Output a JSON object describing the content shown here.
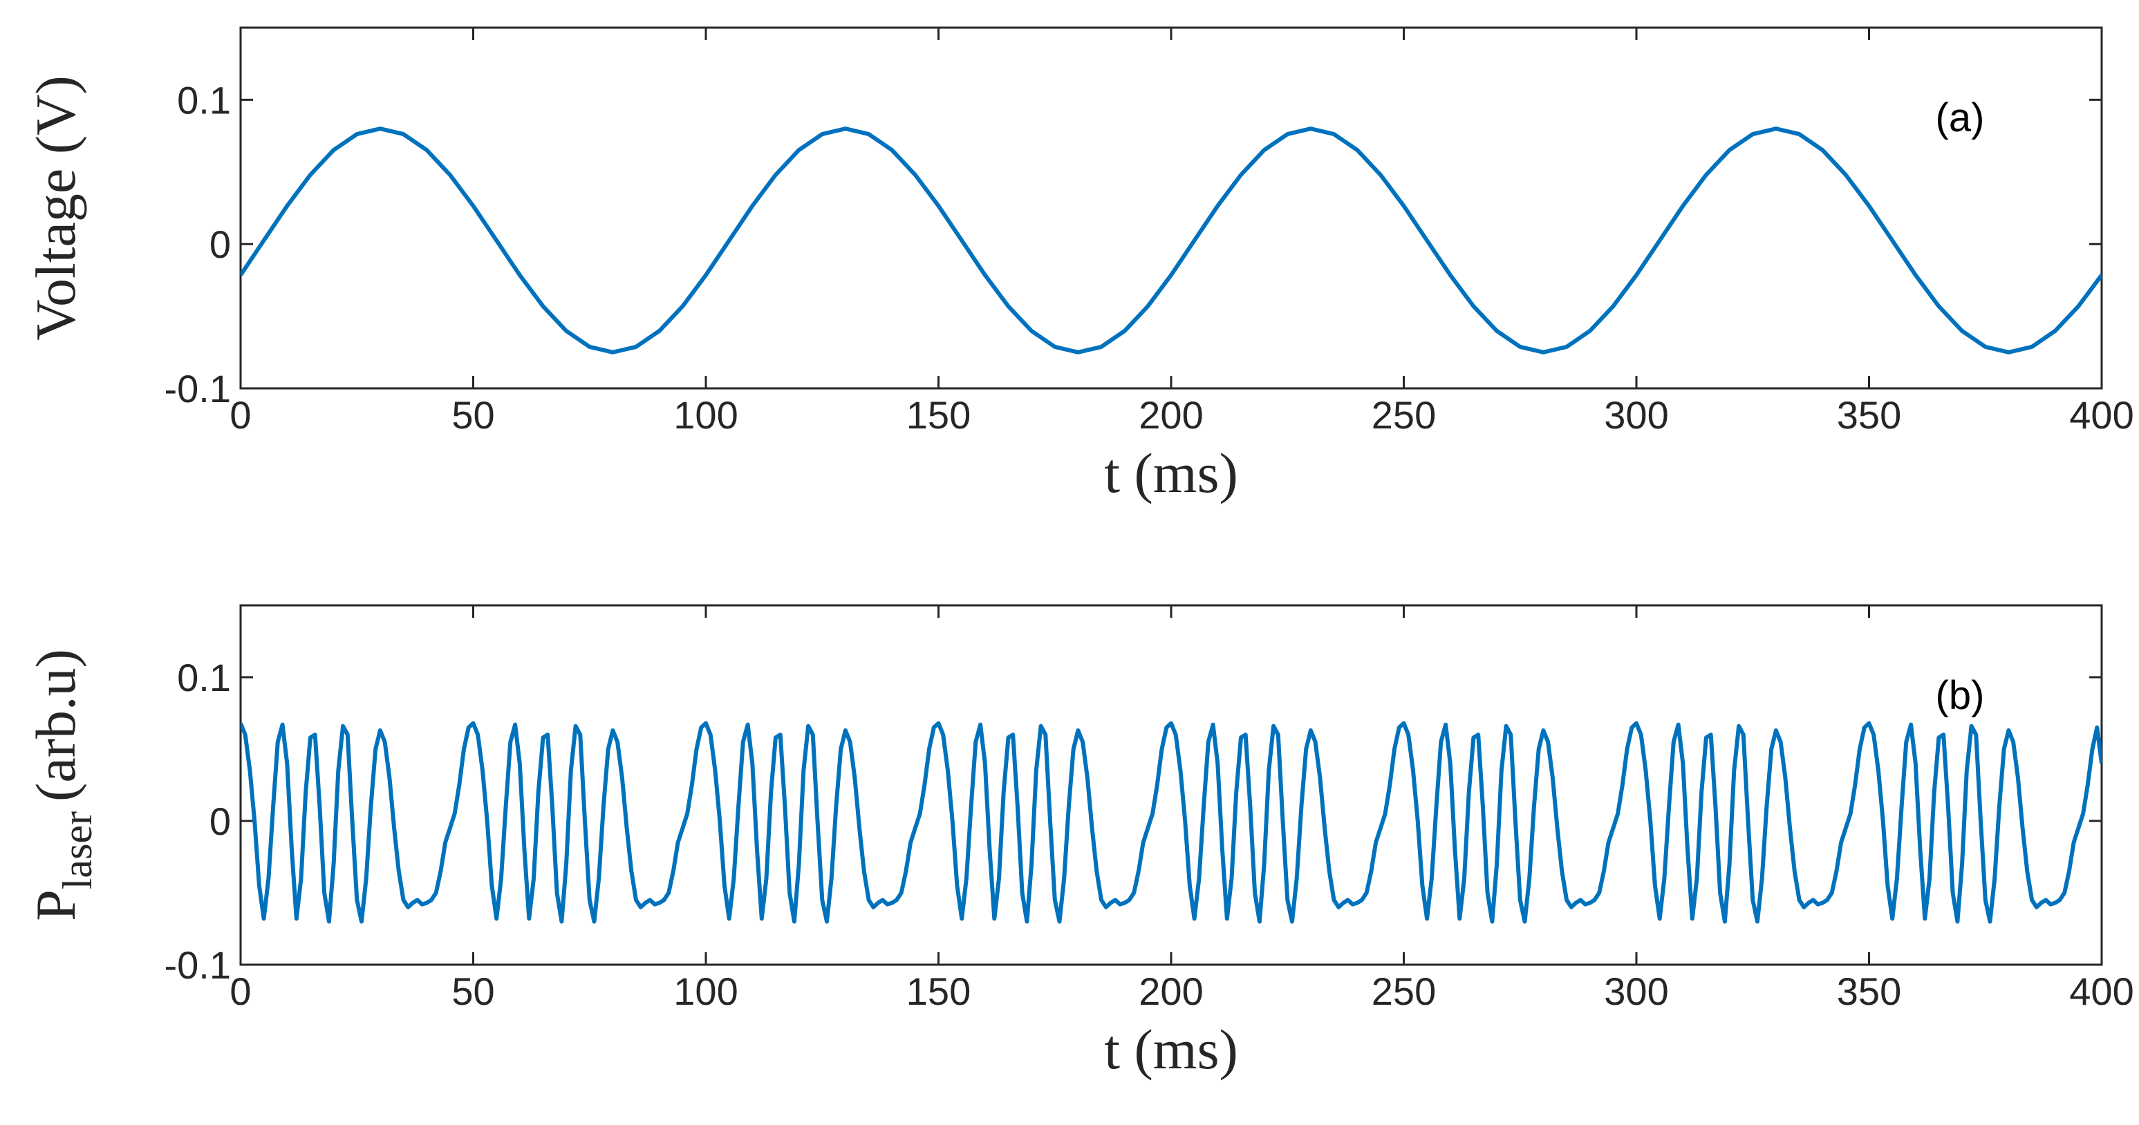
{
  "chart_data": [
    {
      "type": "line",
      "annotation": "(a)",
      "xlabel": "t (ms)",
      "ylabel": "Voltage  (V)",
      "color": "#0072bd",
      "xlim": [
        0,
        400
      ],
      "xticks": [
        0,
        50,
        100,
        150,
        200,
        250,
        300,
        350,
        400
      ],
      "ylim": [
        -0.1,
        0.15
      ],
      "yticks": [
        -0.1,
        0,
        0.1
      ],
      "x": [
        0,
        5,
        10,
        15,
        20,
        25,
        30,
        35,
        40,
        45,
        50,
        55,
        60,
        65,
        70,
        75,
        80,
        85,
        90,
        95,
        100,
        105,
        110,
        115,
        120,
        125,
        130,
        135,
        140,
        145,
        150,
        155,
        160,
        165,
        170,
        175,
        180,
        185,
        190,
        195,
        200,
        205,
        210,
        215,
        220,
        225,
        230,
        235,
        240,
        245,
        250,
        255,
        260,
        265,
        270,
        275,
        280,
        285,
        290,
        295,
        300,
        305,
        310,
        315,
        320,
        325,
        330,
        335,
        340,
        345,
        350,
        355,
        360,
        365,
        370,
        375,
        380,
        385,
        390,
        395,
        400
      ],
      "values": [
        -0.0215,
        0.0025,
        0.0265,
        0.048,
        0.0652,
        0.0762,
        0.08,
        0.0762,
        0.0652,
        0.048,
        0.0265,
        0.0025,
        -0.0215,
        -0.0431,
        -0.0602,
        -0.0712,
        -0.075,
        -0.0712,
        -0.0602,
        -0.0431,
        -0.0215,
        0.0025,
        0.0265,
        0.048,
        0.0652,
        0.0762,
        0.08,
        0.0762,
        0.0652,
        0.048,
        0.0265,
        0.0025,
        -0.0215,
        -0.0431,
        -0.0602,
        -0.0712,
        -0.075,
        -0.0712,
        -0.0602,
        -0.0431,
        -0.0215,
        0.0025,
        0.0265,
        0.048,
        0.0652,
        0.0762,
        0.08,
        0.0762,
        0.0652,
        0.048,
        0.0265,
        0.0025,
        -0.0215,
        -0.0431,
        -0.0602,
        -0.0712,
        -0.075,
        -0.0712,
        -0.0602,
        -0.0431,
        -0.0215,
        0.0025,
        0.0265,
        0.048,
        0.0652,
        0.0762,
        0.08,
        0.0762,
        0.0652,
        0.048,
        0.0265,
        0.0025,
        -0.0215,
        -0.0431,
        -0.0602,
        -0.0712,
        -0.075,
        -0.0712,
        -0.0602,
        -0.0431,
        -0.0215
      ]
    },
    {
      "type": "line",
      "annotation": "(b)",
      "xlabel": "t (ms)",
      "ylabel": {
        "main": "P",
        "sub": "laser",
        "unit": "(arb.u)"
      },
      "color": "#0072bd",
      "xlim": [
        0,
        400
      ],
      "xticks": [
        0,
        50,
        100,
        150,
        200,
        250,
        300,
        350,
        400
      ],
      "ylim": [
        -0.1,
        0.15
      ],
      "yticks": [
        -0.1,
        0,
        0.1
      ],
      "x": [
        0,
        1,
        2,
        3,
        4,
        5,
        6,
        7,
        8,
        9,
        10,
        11,
        12,
        13,
        14,
        15,
        16,
        17,
        18,
        19,
        20,
        21,
        22,
        23,
        24,
        25,
        26,
        27,
        28,
        29,
        30,
        31,
        32,
        33,
        34,
        35,
        36,
        37,
        38,
        39,
        40,
        41,
        42,
        43,
        44,
        45,
        46,
        47,
        48,
        49,
        50,
        51,
        52,
        53,
        54,
        55,
        56,
        57,
        58,
        59,
        60,
        61,
        62,
        63,
        64,
        65,
        66,
        67,
        68,
        69,
        70,
        71,
        72,
        73,
        74,
        75,
        76,
        77,
        78,
        79,
        80,
        81,
        82,
        83,
        84,
        85,
        86,
        87,
        88,
        89,
        90,
        91,
        92,
        93,
        94,
        95,
        96,
        97,
        98,
        99,
        100,
        101,
        102,
        103,
        104,
        105,
        106,
        107,
        108,
        109,
        110,
        111,
        112,
        113,
        114,
        115,
        116,
        117,
        118,
        119,
        120,
        121,
        122,
        123,
        124,
        125,
        126,
        127,
        128,
        129,
        130,
        131,
        132,
        133,
        134,
        135,
        136,
        137,
        138,
        139,
        140,
        141,
        142,
        143,
        144,
        145,
        146,
        147,
        148,
        149,
        150,
        151,
        152,
        153,
        154,
        155,
        156,
        157,
        158,
        159,
        160,
        161,
        162,
        163,
        164,
        165,
        166,
        167,
        168,
        169,
        170,
        171,
        172,
        173,
        174,
        175,
        176,
        177,
        178,
        179,
        180,
        181,
        182,
        183,
        184,
        185,
        186,
        187,
        188,
        189,
        190,
        191,
        192,
        193,
        194,
        195,
        196,
        197,
        198,
        199,
        200,
        201,
        202,
        203,
        204,
        205,
        206,
        207,
        208,
        209,
        210,
        211,
        212,
        213,
        214,
        215,
        216,
        217,
        218,
        219,
        220,
        221,
        222,
        223,
        224,
        225,
        226,
        227,
        228,
        229,
        230,
        231,
        232,
        233,
        234,
        235,
        236,
        237,
        238,
        239,
        240,
        241,
        242,
        243,
        244,
        245,
        246,
        247,
        248,
        249,
        250,
        251,
        252,
        253,
        254,
        255,
        256,
        257,
        258,
        259,
        260,
        261,
        262,
        263,
        264,
        265,
        266,
        267,
        268,
        269,
        270,
        271,
        272,
        273,
        274,
        275,
        276,
        277,
        278,
        279,
        280,
        281,
        282,
        283,
        284,
        285,
        286,
        287,
        288,
        289,
        290,
        291,
        292,
        293,
        294,
        295,
        296,
        297,
        298,
        299,
        300,
        301,
        302,
        303,
        304,
        305,
        306,
        307,
        308,
        309,
        310,
        311,
        312,
        313,
        314,
        315,
        316,
        317,
        318,
        319,
        320,
        321,
        322,
        323,
        324,
        325,
        326,
        327,
        328,
        329,
        330,
        331,
        332,
        333,
        334,
        335,
        336,
        337,
        338,
        339,
        340,
        341,
        342,
        343,
        344,
        345,
        346,
        347,
        348,
        349,
        350,
        351,
        352,
        353,
        354,
        355,
        356,
        357,
        358,
        359,
        360,
        361,
        362,
        363,
        364,
        365,
        366,
        367,
        368,
        369,
        370,
        371,
        372,
        373,
        374,
        375,
        376,
        377,
        378,
        379,
        380,
        381,
        382,
        383,
        384,
        385,
        386,
        387,
        388,
        389,
        390,
        391,
        392,
        393,
        394,
        395,
        396,
        397,
        398,
        399,
        400
      ],
      "values": [
        0.068,
        0.06,
        0.035,
        0,
        -0.045,
        -0.068,
        -0.04,
        0.01,
        0.055,
        0.067,
        0.04,
        -0.02,
        -0.068,
        -0.04,
        0.02,
        0.058,
        0.06,
        0.01,
        -0.05,
        -0.07,
        -0.03,
        0.035,
        0.066,
        0.06,
        0,
        -0.055,
        -0.07,
        -0.04,
        0.01,
        0.05,
        0.063,
        0.055,
        0.03,
        -0.005,
        -0.035,
        -0.055,
        -0.06,
        -0.057,
        -0.055,
        -0.058,
        -0.057,
        -0.055,
        -0.05,
        -0.035,
        -0.015,
        -0.005,
        0.005,
        0.025,
        0.05,
        0.065,
        0.068,
        0.06,
        0.035,
        0,
        -0.045,
        -0.068,
        -0.04,
        0.01,
        0.055,
        0.067,
        0.04,
        -0.02,
        -0.068,
        -0.04,
        0.02,
        0.058,
        0.06,
        0.01,
        -0.05,
        -0.07,
        -0.03,
        0.035,
        0.066,
        0.06,
        0,
        -0.055,
        -0.07,
        -0.04,
        0.01,
        0.05,
        0.063,
        0.055,
        0.03,
        -0.005,
        -0.035,
        -0.055,
        -0.06,
        -0.057,
        -0.055,
        -0.058,
        -0.057,
        -0.055,
        -0.05,
        -0.035,
        -0.015,
        -0.005,
        0.005,
        0.025,
        0.05,
        0.065,
        0.068,
        0.06,
        0.035,
        0,
        -0.045,
        -0.068,
        -0.04,
        0.01,
        0.055,
        0.067,
        0.04,
        -0.02,
        -0.068,
        -0.04,
        0.02,
        0.058,
        0.06,
        0.01,
        -0.05,
        -0.07,
        -0.03,
        0.035,
        0.066,
        0.06,
        0,
        -0.055,
        -0.07,
        -0.04,
        0.01,
        0.05,
        0.063,
        0.055,
        0.03,
        -0.005,
        -0.035,
        -0.055,
        -0.06,
        -0.057,
        -0.055,
        -0.058,
        -0.057,
        -0.055,
        -0.05,
        -0.035,
        -0.015,
        -0.005,
        0.005,
        0.025,
        0.05,
        0.065,
        0.068,
        0.06,
        0.035,
        0,
        -0.045,
        -0.068,
        -0.04,
        0.01,
        0.055,
        0.067,
        0.04,
        -0.02,
        -0.068,
        -0.04,
        0.02,
        0.058,
        0.06,
        0.01,
        -0.05,
        -0.07,
        -0.03,
        0.035,
        0.066,
        0.06,
        0,
        -0.055,
        -0.07,
        -0.04,
        0.01,
        0.05,
        0.063,
        0.055,
        0.03,
        -0.005,
        -0.035,
        -0.055,
        -0.06,
        -0.057,
        -0.055,
        -0.058,
        -0.057,
        -0.055,
        -0.05,
        -0.035,
        -0.015,
        -0.005,
        0.005,
        0.025,
        0.05,
        0.065,
        0.068,
        0.06,
        0.035,
        0,
        -0.045,
        -0.068,
        -0.04,
        0.01,
        0.055,
        0.067,
        0.04,
        -0.02,
        -0.068,
        -0.04,
        0.02,
        0.058,
        0.06,
        0.01,
        -0.05,
        -0.07,
        -0.03,
        0.035,
        0.066,
        0.06,
        0,
        -0.055,
        -0.07,
        -0.04,
        0.01,
        0.05,
        0.063,
        0.055,
        0.03,
        -0.005,
        -0.035,
        -0.055,
        -0.06,
        -0.057,
        -0.055,
        -0.058,
        -0.057,
        -0.055,
        -0.05,
        -0.035,
        -0.015,
        -0.005,
        0.005,
        0.025,
        0.05,
        0.065,
        0.068,
        0.06,
        0.035,
        0,
        -0.045,
        -0.068,
        -0.04,
        0.01,
        0.055,
        0.067,
        0.04,
        -0.02,
        -0.068,
        -0.04,
        0.02,
        0.058,
        0.06,
        0.01,
        -0.05,
        -0.07,
        -0.03,
        0.035,
        0.066,
        0.06,
        0,
        -0.055,
        -0.07,
        -0.04,
        0.01,
        0.05,
        0.063,
        0.055,
        0.03,
        -0.005,
        -0.035,
        -0.055,
        -0.06,
        -0.057,
        -0.055,
        -0.058,
        -0.057,
        -0.055,
        -0.05,
        -0.035,
        -0.015,
        -0.005,
        0.005,
        0.025,
        0.05,
        0.065,
        0.068,
        0.06,
        0.035,
        0,
        -0.045,
        -0.068,
        -0.04,
        0.01,
        0.055,
        0.067,
        0.04,
        -0.02,
        -0.068,
        -0.04,
        0.02,
        0.058,
        0.06,
        0.01,
        -0.05,
        -0.07,
        -0.03,
        0.035,
        0.066,
        0.06,
        0,
        -0.055,
        -0.07,
        -0.04,
        0.01,
        0.05,
        0.063,
        0.055,
        0.03,
        -0.005,
        -0.035,
        -0.055,
        -0.06,
        -0.057,
        -0.055,
        -0.058,
        -0.057,
        -0.055,
        -0.05,
        -0.035,
        -0.015,
        -0.005,
        0.005,
        0.025,
        0.05,
        0.065,
        0.068,
        0.06,
        0.035,
        0,
        -0.045,
        -0.068,
        -0.04,
        0.01,
        0.055,
        0.067,
        0.04,
        -0.02,
        -0.068,
        -0.04,
        0.02,
        0.058,
        0.06,
        0.01,
        -0.05,
        -0.07,
        -0.03,
        0.035,
        0.066,
        0.06,
        0,
        -0.055,
        -0.07,
        -0.04,
        0.01,
        0.05,
        0.063,
        0.055,
        0.03,
        -0.005,
        -0.035,
        -0.055,
        -0.06,
        -0.057,
        -0.055,
        -0.058,
        -0.057,
        -0.055,
        -0.05,
        -0.035,
        -0.015,
        -0.005,
        0.005,
        0.025,
        0.05,
        0.065,
        0.04
      ]
    }
  ]
}
